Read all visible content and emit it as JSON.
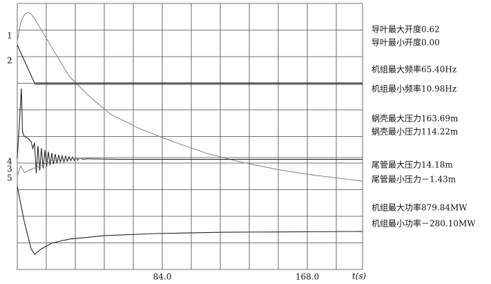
{
  "chart_data": {
    "type": "line",
    "x_label": "t(s)",
    "xlim": [
      0,
      200
    ],
    "ylim": [
      0,
      10
    ],
    "xticks": [
      {
        "value": 84,
        "label": "84.0"
      },
      {
        "value": 168,
        "label": "168.0"
      }
    ],
    "xgrid": [
      0,
      16.8,
      33.6,
      50.4,
      67.2,
      84,
      100.8,
      117.6,
      134.4,
      151.2,
      168,
      184.8,
      200
    ],
    "ygrid": [
      0,
      1,
      2,
      3,
      4,
      5,
      6,
      7,
      8,
      9,
      10
    ],
    "grid": true,
    "curve_labels": [
      "1",
      "2",
      "4",
      "3",
      "5"
    ],
    "annotations": [
      "导叶最大开度0.62",
      "导叶最小开度0.00",
      "机组最大频率65.40Hz",
      "机组最小频率10.98Hz",
      "蜗壳最大压力163.69m",
      "蜗壳最小压力114.22m",
      "尾管最大压力14.18m",
      "尾管最小压力－1.43m",
      "机组最大功率879.84MW",
      "机组最小功率－280.10MW"
    ],
    "series": [
      {
        "color": "#8a8a8a",
        "x": [
          0,
          2,
          4,
          6,
          8,
          12,
          18,
          30,
          42,
          54,
          70,
          90,
          110,
          130,
          150,
          170,
          200
        ],
        "values": [
          8.57,
          9.3,
          9.56,
          9.66,
          9.61,
          9.22,
          8.57,
          7.27,
          6.49,
          5.84,
          5.32,
          4.81,
          4.36,
          4.03,
          3.77,
          3.56,
          3.32
        ]
      },
      {
        "color": "#222222",
        "x": [
          0,
          10,
          200
        ],
        "values": [
          8.44,
          7.01,
          7.01
        ]
      },
      {
        "color": "#222222",
        "x": [
          10,
          200
        ],
        "values": [
          6.96,
          6.96
        ]
      },
      {
        "color": "#222222",
        "x": [
          0,
          2.4,
          3,
          4,
          6,
          8,
          9,
          10,
          11,
          12,
          13,
          14,
          15,
          16,
          17,
          18,
          19,
          20,
          21,
          22,
          23,
          24,
          25,
          26,
          27,
          28,
          29,
          30,
          31,
          32,
          33,
          34,
          35,
          36,
          38,
          40,
          60,
          200
        ],
        "values": [
          4.16,
          6.81,
          5.19,
          5.01,
          4.94,
          4.81,
          4.55,
          4.76,
          3.62,
          4.65,
          3.72,
          4.56,
          3.8,
          4.49,
          3.86,
          4.43,
          3.92,
          4.38,
          3.96,
          4.34,
          4.0,
          4.31,
          4.03,
          4.28,
          4.05,
          4.26,
          4.07,
          4.24,
          4.09,
          4.23,
          4.1,
          4.21,
          4.11,
          4.2,
          4.14,
          4.16,
          4.14,
          4.14
        ]
      },
      {
        "color": "#8a8a8a",
        "x": [
          0,
          2,
          4,
          8,
          14,
          20,
          40,
          80,
          200
        ],
        "values": [
          3.51,
          3.9,
          3.64,
          3.77,
          3.9,
          4.1,
          4.21,
          4.21,
          4.21
        ]
      },
      {
        "color": "#222222",
        "x": [
          0,
          4,
          8,
          10,
          14,
          20,
          30,
          50,
          80,
          120,
          200
        ],
        "values": [
          3.12,
          1.82,
          0.78,
          0.57,
          0.78,
          0.99,
          1.14,
          1.27,
          1.35,
          1.4,
          1.43
        ]
      }
    ]
  }
}
